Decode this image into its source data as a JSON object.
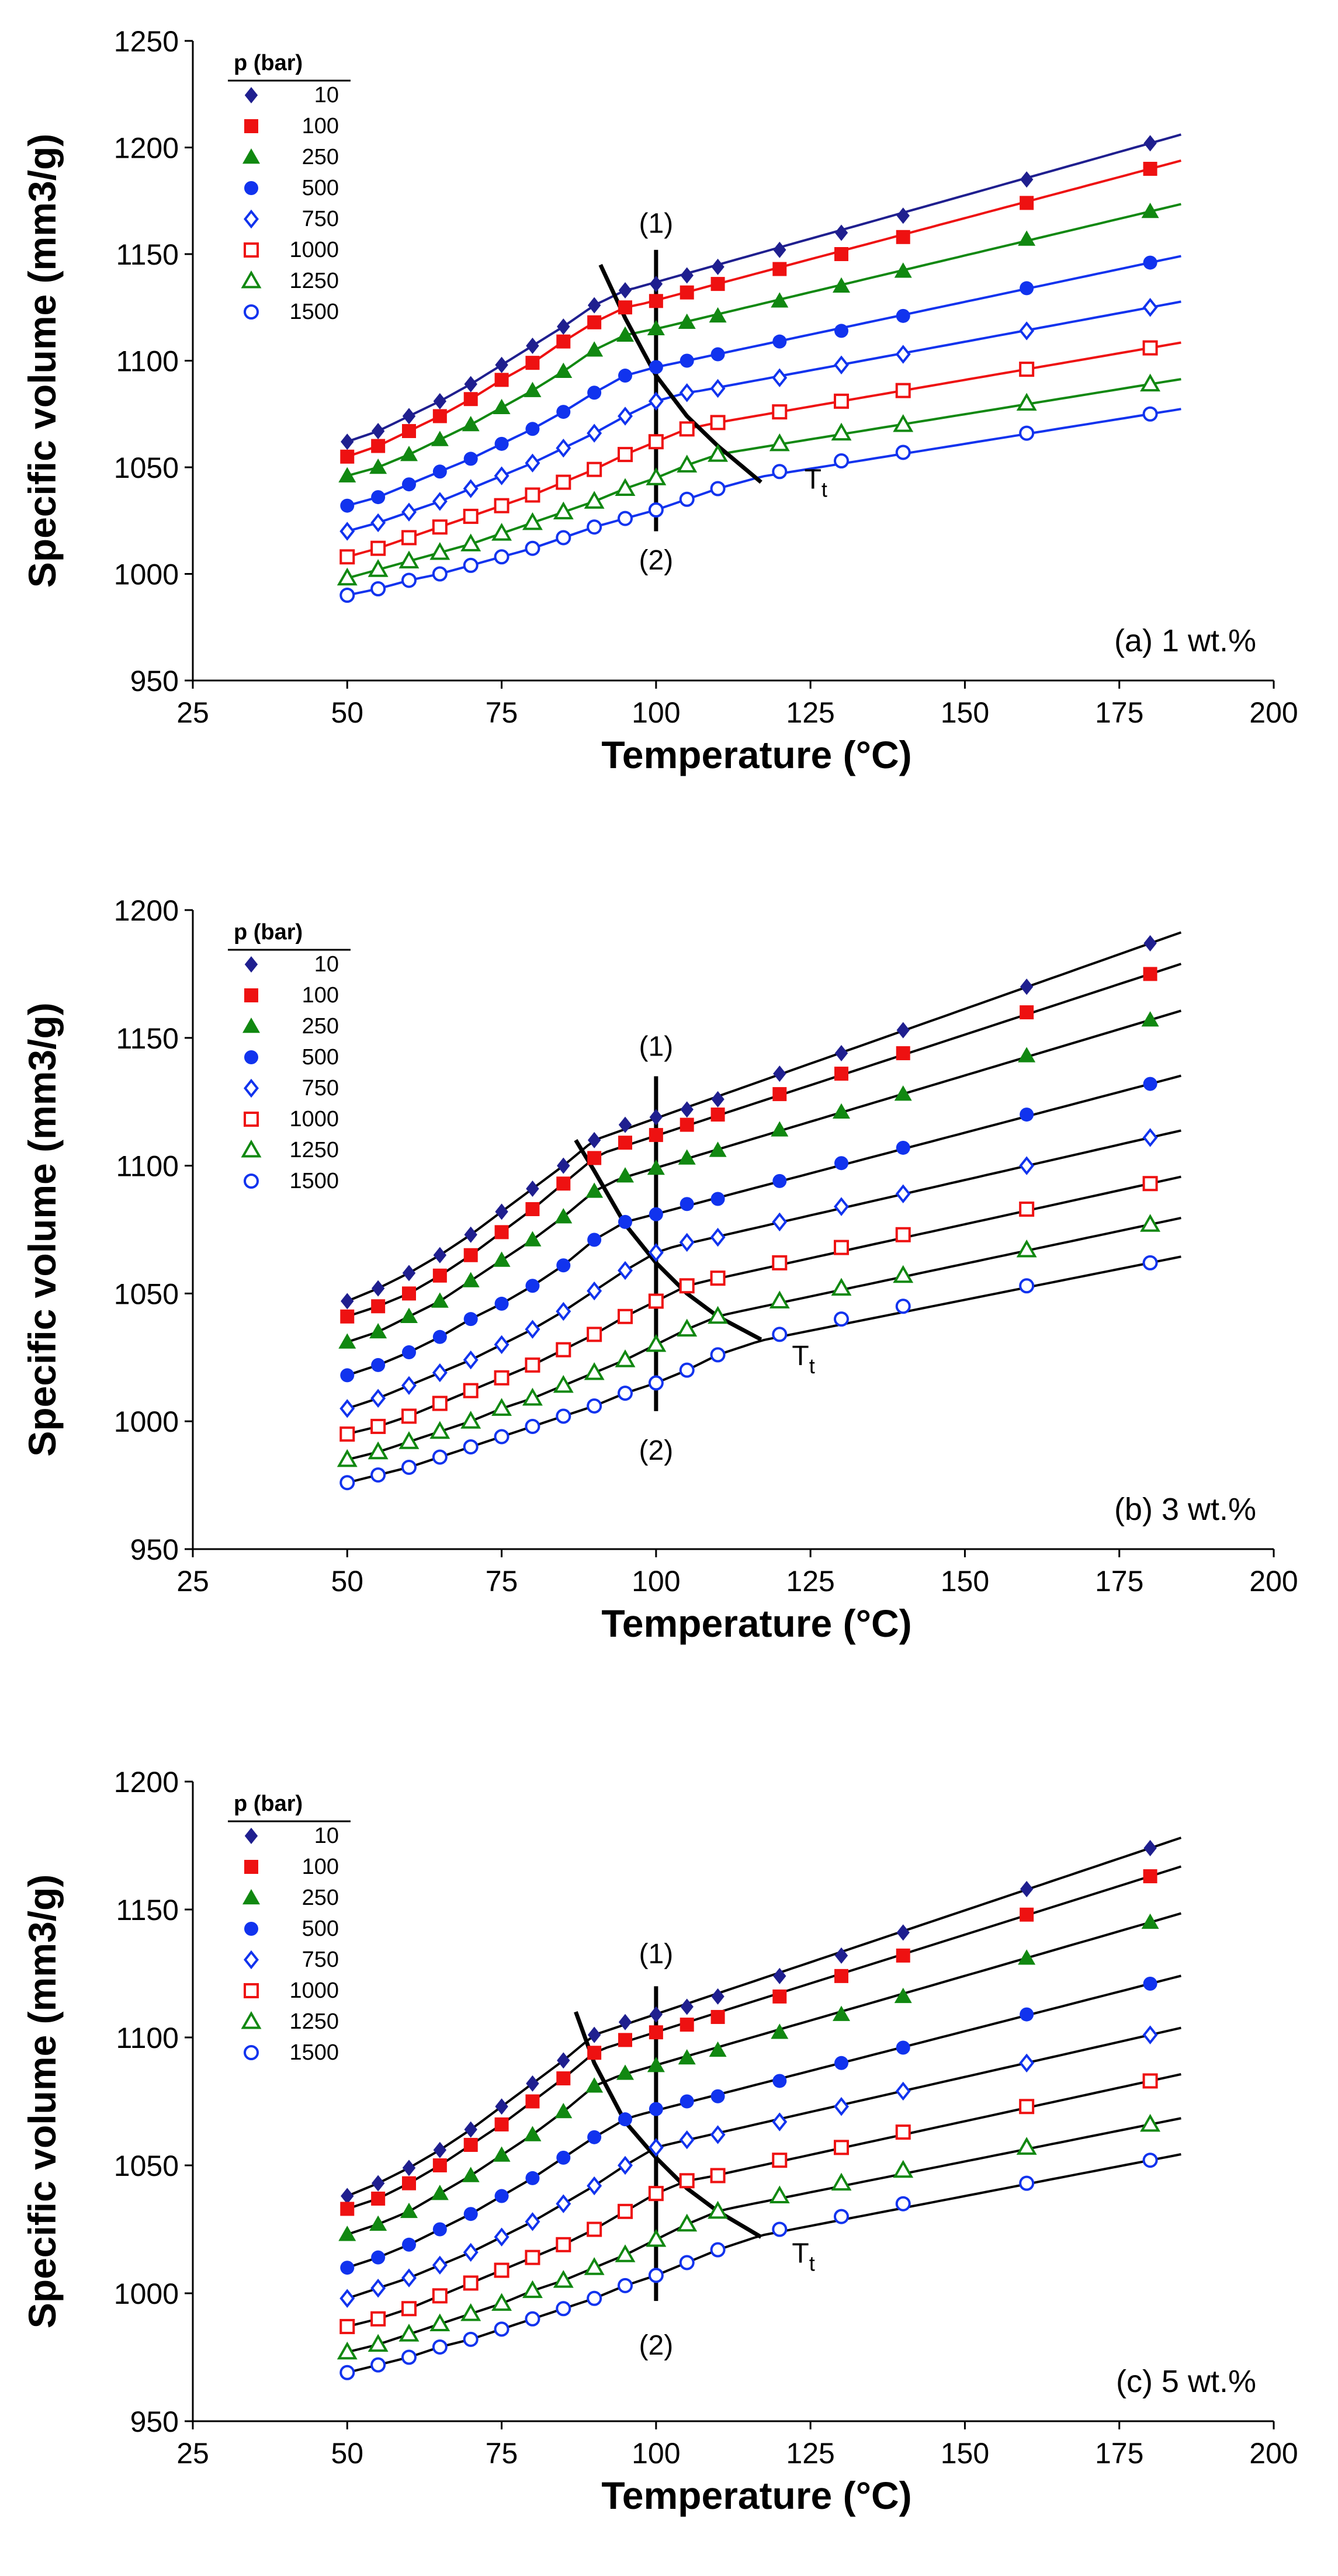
{
  "colors": {
    "10": "#1f1f8f",
    "100": "#ee1111",
    "250": "#118811",
    "500": "#1133ee",
    "750": "#1133ee",
    "1000": "#ee1111",
    "1250": "#118811",
    "1500": "#1133ee",
    "axis": "#000000"
  },
  "chart_data": [
    {
      "type": "scatter",
      "panel_label": "(a) 1 wt.%",
      "xlabel": "Temperature (°C)",
      "ylabel": "Specific volume (mm3/g)",
      "xlim": [
        25,
        200
      ],
      "ylim": [
        950,
        1250
      ],
      "x_ticks": [
        25,
        50,
        75,
        100,
        125,
        150,
        175,
        200
      ],
      "y_ticks": [
        950,
        1000,
        1050,
        1100,
        1150,
        1200,
        1250
      ],
      "legend": {
        "title": "p (bar)",
        "position": "top-left"
      },
      "x": [
        50,
        55,
        60,
        65,
        70,
        75,
        80,
        85,
        90,
        95,
        100,
        105,
        110,
        120,
        130,
        140,
        160,
        180
      ],
      "series": [
        {
          "name": "10",
          "marker": "diamond-filled",
          "color_key": "10",
          "values": [
            1062,
            1067,
            1074,
            1081,
            1089,
            1098,
            1107,
            1116,
            1126,
            1133,
            1136,
            1140,
            1144,
            1152,
            1160,
            1168,
            1185,
            1202
          ],
          "transition_T": 96
        },
        {
          "name": "100",
          "marker": "square-filled",
          "color_key": "100",
          "values": [
            1055,
            1060,
            1067,
            1074,
            1082,
            1091,
            1099,
            1109,
            1118,
            1125,
            1128,
            1132,
            1136,
            1143,
            1150,
            1158,
            1174,
            1190
          ],
          "transition_T": 98
        },
        {
          "name": "250",
          "marker": "triangle-filled",
          "color_key": "250",
          "values": [
            1046,
            1050,
            1056,
            1063,
            1070,
            1078,
            1086,
            1095,
            1105,
            1112,
            1115,
            1118,
            1121,
            1128,
            1135,
            1142,
            1157,
            1170
          ],
          "transition_T": 101
        },
        {
          "name": "500",
          "marker": "circle-filled",
          "color_key": "500",
          "values": [
            1032,
            1036,
            1042,
            1048,
            1054,
            1061,
            1068,
            1076,
            1085,
            1093,
            1097,
            1100,
            1103,
            1109,
            1114,
            1121,
            1134,
            1146
          ],
          "transition_T": 104
        },
        {
          "name": "750",
          "marker": "diamond-open",
          "color_key": "750",
          "values": [
            1020,
            1024,
            1029,
            1034,
            1040,
            1046,
            1052,
            1059,
            1066,
            1074,
            1081,
            1085,
            1087,
            1092,
            1098,
            1103,
            1114,
            1125
          ],
          "transition_T": 107
        },
        {
          "name": "1000",
          "marker": "square-open",
          "color_key": "1000",
          "values": [
            1008,
            1012,
            1017,
            1022,
            1027,
            1032,
            1037,
            1043,
            1049,
            1056,
            1062,
            1068,
            1071,
            1076,
            1081,
            1086,
            1096,
            1106
          ],
          "transition_T": 110
        },
        {
          "name": "1250",
          "marker": "triangle-open",
          "color_key": "1250",
          "values": [
            998,
            1002,
            1006,
            1010,
            1014,
            1019,
            1024,
            1029,
            1034,
            1040,
            1045,
            1051,
            1056,
            1061,
            1066,
            1070,
            1080,
            1089
          ],
          "transition_T": 113
        },
        {
          "name": "1500",
          "marker": "circle-open",
          "color_key": "1500",
          "values": [
            990,
            993,
            997,
            1000,
            1004,
            1008,
            1012,
            1017,
            1022,
            1026,
            1030,
            1035,
            1040,
            1048,
            1053,
            1057,
            1066,
            1075
          ],
          "transition_T": 117
        }
      ],
      "annotations": [
        {
          "text": "(1)",
          "x": 100,
          "y": 1160
        },
        {
          "text": "(2)",
          "x": 100,
          "y": 1002
        },
        {
          "text": "T",
          "subscript": "t",
          "x": 124,
          "y": 1040
        }
      ],
      "isobar": {
        "x": 100,
        "ymin": 1020,
        "ymax": 1152
      },
      "tt_curve": {
        "x": [
          91,
          95,
          100,
          105,
          110,
          117
        ],
        "y": [
          1145,
          1120,
          1093,
          1074,
          1060,
          1043
        ]
      }
    },
    {
      "type": "scatter",
      "panel_label": "(b) 3 wt.%",
      "xlabel": "Temperature (°C)",
      "ylabel": "Specific volume (mm3/g)",
      "xlim": [
        25,
        200
      ],
      "ylim": [
        950,
        1200
      ],
      "x_ticks": [
        25,
        50,
        75,
        100,
        125,
        150,
        175,
        200
      ],
      "y_ticks": [
        950,
        1000,
        1050,
        1100,
        1150,
        1200
      ],
      "legend": {
        "title": "p (bar)",
        "position": "top-left"
      },
      "x": [
        50,
        55,
        60,
        65,
        70,
        75,
        80,
        85,
        90,
        95,
        100,
        105,
        110,
        120,
        130,
        140,
        160,
        180
      ],
      "series": [
        {
          "name": "10",
          "marker": "diamond-filled",
          "color_key": "10",
          "values": [
            1047,
            1052,
            1058,
            1065,
            1073,
            1082,
            1091,
            1100,
            1110,
            1116,
            1119,
            1122,
            1126,
            1136,
            1144,
            1153,
            1170,
            1187
          ],
          "transition_T": 90
        },
        {
          "name": "100",
          "marker": "square-filled",
          "color_key": "100",
          "values": [
            1041,
            1045,
            1050,
            1057,
            1065,
            1074,
            1083,
            1093,
            1103,
            1109,
            1112,
            1116,
            1120,
            1128,
            1136,
            1144,
            1160,
            1175
          ],
          "transition_T": 92
        },
        {
          "name": "250",
          "marker": "triangle-filled",
          "color_key": "250",
          "values": [
            1031,
            1035,
            1041,
            1047,
            1055,
            1063,
            1071,
            1080,
            1090,
            1096,
            1099,
            1103,
            1106,
            1114,
            1121,
            1128,
            1143,
            1157
          ],
          "transition_T": 94
        },
        {
          "name": "500",
          "marker": "circle-filled",
          "color_key": "500",
          "values": [
            1018,
            1022,
            1027,
            1033,
            1040,
            1046,
            1053,
            1061,
            1071,
            1078,
            1081,
            1085,
            1087,
            1094,
            1101,
            1107,
            1120,
            1132
          ],
          "transition_T": 97
        },
        {
          "name": "750",
          "marker": "diamond-open",
          "color_key": "750",
          "values": [
            1005,
            1009,
            1014,
            1019,
            1024,
            1030,
            1036,
            1043,
            1051,
            1059,
            1066,
            1070,
            1072,
            1078,
            1084,
            1089,
            1100,
            1111
          ],
          "transition_T": 103
        },
        {
          "name": "1000",
          "marker": "square-open",
          "color_key": "1000",
          "values": [
            995,
            998,
            1002,
            1007,
            1012,
            1017,
            1022,
            1028,
            1034,
            1041,
            1047,
            1053,
            1056,
            1062,
            1068,
            1073,
            1083,
            1093
          ],
          "transition_T": 108
        },
        {
          "name": "1250",
          "marker": "triangle-open",
          "color_key": "1250",
          "values": [
            985,
            988,
            992,
            996,
            1000,
            1005,
            1009,
            1014,
            1019,
            1024,
            1030,
            1036,
            1041,
            1047,
            1052,
            1057,
            1067,
            1077
          ],
          "transition_T": 112
        },
        {
          "name": "1500",
          "marker": "circle-open",
          "color_key": "1500",
          "values": [
            976,
            979,
            982,
            986,
            990,
            994,
            998,
            1002,
            1006,
            1011,
            1015,
            1020,
            1026,
            1034,
            1040,
            1045,
            1053,
            1062
          ],
          "transition_T": 117
        }
      ],
      "annotations": [
        {
          "text": "(1)",
          "x": 100,
          "y": 1143
        },
        {
          "text": "(2)",
          "x": 100,
          "y": 985
        },
        {
          "text": "T",
          "subscript": "t",
          "x": 122,
          "y": 1022
        }
      ],
      "isobar": {
        "x": 100,
        "ymin": 1004,
        "ymax": 1135
      },
      "tt_curve": {
        "x": [
          87,
          90,
          95,
          100,
          105,
          110,
          117
        ],
        "y": [
          1110,
          1098,
          1077,
          1062,
          1050,
          1041,
          1032
        ]
      }
    },
    {
      "type": "scatter",
      "panel_label": "(c) 5 wt.%",
      "xlabel": "Temperature (°C)",
      "ylabel": "Specific volume (mm3/g)",
      "xlim": [
        25,
        200
      ],
      "ylim": [
        950,
        1200
      ],
      "x_ticks": [
        25,
        50,
        75,
        100,
        125,
        150,
        175,
        200
      ],
      "y_ticks": [
        950,
        1000,
        1050,
        1100,
        1150,
        1200
      ],
      "legend": {
        "title": "p (bar)",
        "position": "top-left"
      },
      "x": [
        50,
        55,
        60,
        65,
        70,
        75,
        80,
        85,
        90,
        95,
        100,
        105,
        110,
        120,
        130,
        140,
        160,
        180
      ],
      "series": [
        {
          "name": "10",
          "marker": "diamond-filled",
          "color_key": "10",
          "values": [
            1038,
            1043,
            1049,
            1056,
            1064,
            1073,
            1082,
            1091,
            1101,
            1106,
            1109,
            1112,
            1116,
            1124,
            1132,
            1141,
            1158,
            1174
          ],
          "transition_T": 90
        },
        {
          "name": "100",
          "marker": "square-filled",
          "color_key": "100",
          "values": [
            1033,
            1037,
            1043,
            1050,
            1058,
            1066,
            1075,
            1084,
            1094,
            1099,
            1102,
            1105,
            1108,
            1116,
            1124,
            1132,
            1148,
            1163
          ],
          "transition_T": 92
        },
        {
          "name": "250",
          "marker": "triangle-filled",
          "color_key": "250",
          "values": [
            1023,
            1027,
            1032,
            1039,
            1046,
            1054,
            1062,
            1071,
            1081,
            1086,
            1089,
            1092,
            1095,
            1102,
            1109,
            1116,
            1131,
            1145
          ],
          "transition_T": 94
        },
        {
          "name": "500",
          "marker": "circle-filled",
          "color_key": "500",
          "values": [
            1010,
            1014,
            1019,
            1025,
            1031,
            1038,
            1045,
            1053,
            1061,
            1068,
            1072,
            1075,
            1077,
            1083,
            1090,
            1096,
            1109,
            1121
          ],
          "transition_T": 97
        },
        {
          "name": "750",
          "marker": "diamond-open",
          "color_key": "750",
          "values": [
            998,
            1002,
            1006,
            1011,
            1016,
            1022,
            1028,
            1035,
            1042,
            1050,
            1057,
            1060,
            1062,
            1067,
            1073,
            1079,
            1090,
            1101
          ],
          "transition_T": 103
        },
        {
          "name": "1000",
          "marker": "square-open",
          "color_key": "1000",
          "values": [
            987,
            990,
            994,
            999,
            1004,
            1009,
            1014,
            1019,
            1025,
            1032,
            1039,
            1044,
            1046,
            1052,
            1057,
            1063,
            1073,
            1083
          ],
          "transition_T": 108
        },
        {
          "name": "1250",
          "marker": "triangle-open",
          "color_key": "1250",
          "values": [
            977,
            980,
            984,
            988,
            992,
            996,
            1001,
            1005,
            1010,
            1015,
            1021,
            1027,
            1032,
            1038,
            1043,
            1048,
            1057,
            1066
          ],
          "transition_T": 112
        },
        {
          "name": "1500",
          "marker": "circle-open",
          "color_key": "1500",
          "values": [
            969,
            972,
            975,
            979,
            982,
            986,
            990,
            994,
            998,
            1003,
            1007,
            1012,
            1017,
            1025,
            1030,
            1035,
            1043,
            1052
          ],
          "transition_T": 117
        }
      ],
      "annotations": [
        {
          "text": "(1)",
          "x": 100,
          "y": 1129
        },
        {
          "text": "(2)",
          "x": 100,
          "y": 976
        },
        {
          "text": "T",
          "subscript": "t",
          "x": 122,
          "y": 1012
        }
      ],
      "isobar": {
        "x": 100,
        "ymin": 997,
        "ymax": 1120
      },
      "tt_curve": {
        "x": [
          87,
          90,
          95,
          100,
          105,
          110,
          117
        ],
        "y": [
          1110,
          1090,
          1067,
          1053,
          1041,
          1032,
          1022
        ]
      }
    }
  ]
}
